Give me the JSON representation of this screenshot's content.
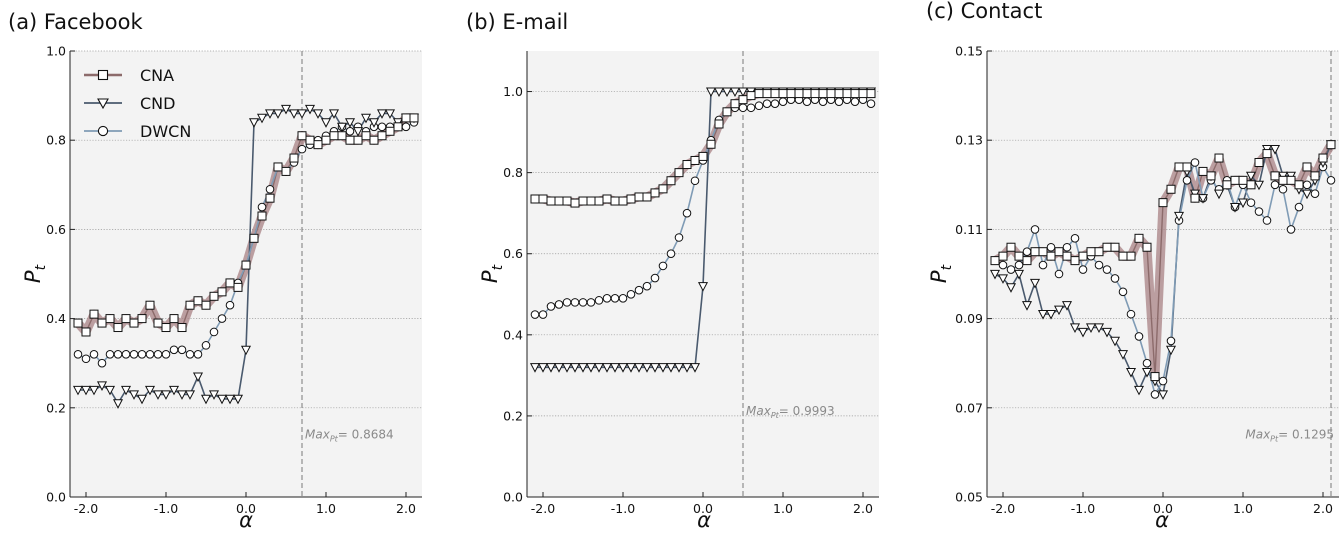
{
  "colors": {
    "CNA_line": "#8c6b6b",
    "CNA_band": "#a88284",
    "CND_line": "#4a5a6e",
    "DWCN_line": "#7f9bb5",
    "panel_bg": "#f3f3f3",
    "grid": "#9a9a9a",
    "marker_edge": "#111111",
    "marker_fill": "#ffffff",
    "max_line": "#7a7a7a",
    "max_text": "#8a8a8a"
  },
  "legend": {
    "placement": "top-left of panel (a)",
    "entries": [
      {
        "label": "CNA",
        "marker": "square"
      },
      {
        "label": "CND",
        "marker": "triangle-down"
      },
      {
        "label": "DWCN",
        "marker": "circle"
      }
    ]
  },
  "chart_data": [
    {
      "type": "line",
      "title": "(a) Facebook",
      "xlabel": "α",
      "ylabel": "P_t",
      "xlim": [
        -2.2,
        2.2
      ],
      "ylim": [
        0.0,
        1.0
      ],
      "xticks": [
        -2.0,
        -1.0,
        0.0,
        1.0,
        2.0
      ],
      "xtick_labels": [
        "-2.0",
        "-1.0",
        "0.0",
        "1.0",
        "2.0"
      ],
      "yticks": [
        0.0,
        0.2,
        0.4,
        0.6,
        0.8,
        1.0
      ],
      "ytick_labels": [
        "0.0",
        "0.2",
        "0.4",
        "0.6",
        "0.8",
        "1.0"
      ],
      "grid": "horizontal dotted",
      "max_alpha": 0.7,
      "max_label": "Max",
      "max_subscript": "Pt",
      "max_value_text": "= 0.8684",
      "x": [
        -2.1,
        -2.0,
        -1.9,
        -1.8,
        -1.7,
        -1.6,
        -1.5,
        -1.4,
        -1.3,
        -1.2,
        -1.1,
        -1.0,
        -0.9,
        -0.8,
        -0.7,
        -0.6,
        -0.5,
        -0.4,
        -0.3,
        -0.2,
        -0.1,
        0.0,
        0.1,
        0.2,
        0.3,
        0.4,
        0.5,
        0.6,
        0.7,
        0.8,
        0.9,
        1.0,
        1.1,
        1.2,
        1.3,
        1.4,
        1.5,
        1.6,
        1.7,
        1.8,
        1.9,
        2.0,
        2.1
      ],
      "series": [
        {
          "name": "CNA",
          "marker": "square",
          "band": true,
          "values": [
            0.39,
            0.37,
            0.41,
            0.39,
            0.4,
            0.38,
            0.4,
            0.39,
            0.4,
            0.43,
            0.39,
            0.38,
            0.4,
            0.38,
            0.43,
            0.44,
            0.43,
            0.45,
            0.46,
            0.48,
            0.47,
            0.52,
            0.58,
            0.63,
            0.67,
            0.74,
            0.73,
            0.76,
            0.81,
            0.8,
            0.79,
            0.8,
            0.81,
            0.81,
            0.8,
            0.8,
            0.81,
            0.8,
            0.81,
            0.82,
            0.83,
            0.85,
            0.85
          ]
        },
        {
          "name": "CND",
          "marker": "triangle-down",
          "values": [
            0.24,
            0.24,
            0.24,
            0.25,
            0.24,
            0.21,
            0.24,
            0.23,
            0.22,
            0.24,
            0.23,
            0.23,
            0.24,
            0.23,
            0.23,
            0.27,
            0.22,
            0.23,
            0.22,
            0.22,
            0.22,
            0.33,
            0.84,
            0.85,
            0.86,
            0.86,
            0.87,
            0.86,
            0.86,
            0.87,
            0.86,
            0.84,
            0.86,
            0.83,
            0.84,
            0.82,
            0.85,
            0.84,
            0.86,
            0.86,
            0.84,
            0.85,
            0.85
          ]
        },
        {
          "name": "DWCN",
          "marker": "circle",
          "values": [
            0.32,
            0.31,
            0.32,
            0.3,
            0.32,
            0.32,
            0.32,
            0.32,
            0.32,
            0.32,
            0.32,
            0.32,
            0.33,
            0.33,
            0.32,
            0.32,
            0.34,
            0.37,
            0.4,
            0.43,
            0.48,
            0.52,
            0.58,
            0.65,
            0.69,
            0.74,
            0.73,
            0.75,
            0.78,
            0.79,
            0.8,
            0.81,
            0.82,
            0.83,
            0.82,
            0.83,
            0.82,
            0.83,
            0.83,
            0.83,
            0.83,
            0.83,
            0.84
          ]
        }
      ]
    },
    {
      "type": "line",
      "title": "(b) E-mail",
      "xlabel": "α",
      "ylabel": "P_t",
      "xlim": [
        -2.2,
        2.2
      ],
      "ylim": [
        0.0,
        1.1
      ],
      "xticks": [
        -2.0,
        -1.0,
        0.0,
        1.0,
        2.0
      ],
      "xtick_labels": [
        "-2.0",
        "-1.0",
        "0.0",
        "1.0",
        "2.0"
      ],
      "yticks": [
        0.0,
        0.2,
        0.4,
        0.6,
        0.8,
        1.0
      ],
      "ytick_labels": [
        "0.0",
        "0.2",
        "0.4",
        "0.6",
        "0.8",
        "1.0"
      ],
      "grid": "horizontal dotted",
      "max_alpha": 0.5,
      "max_label": "Max",
      "max_subscript": "Pt",
      "max_value_text": "= 0.9993",
      "x": [
        -2.1,
        -2.0,
        -1.9,
        -1.8,
        -1.7,
        -1.6,
        -1.5,
        -1.4,
        -1.3,
        -1.2,
        -1.1,
        -1.0,
        -0.9,
        -0.8,
        -0.7,
        -0.6,
        -0.5,
        -0.4,
        -0.3,
        -0.2,
        -0.1,
        0.0,
        0.1,
        0.2,
        0.3,
        0.4,
        0.5,
        0.6,
        0.7,
        0.8,
        0.9,
        1.0,
        1.1,
        1.2,
        1.3,
        1.4,
        1.5,
        1.6,
        1.7,
        1.8,
        1.9,
        2.0,
        2.1
      ],
      "series": [
        {
          "name": "CNA",
          "marker": "square",
          "band": true,
          "values": [
            0.735,
            0.735,
            0.73,
            0.73,
            0.73,
            0.725,
            0.73,
            0.73,
            0.73,
            0.735,
            0.73,
            0.73,
            0.735,
            0.74,
            0.74,
            0.75,
            0.76,
            0.78,
            0.8,
            0.82,
            0.83,
            0.84,
            0.87,
            0.92,
            0.95,
            0.97,
            0.98,
            0.99,
            0.995,
            0.995,
            0.995,
            0.995,
            0.995,
            0.995,
            0.995,
            0.995,
            0.995,
            0.995,
            0.995,
            0.995,
            0.995,
            0.995,
            0.995
          ]
        },
        {
          "name": "CND",
          "marker": "triangle-down",
          "values": [
            0.32,
            0.32,
            0.32,
            0.32,
            0.32,
            0.32,
            0.32,
            0.32,
            0.32,
            0.32,
            0.32,
            0.32,
            0.32,
            0.32,
            0.32,
            0.32,
            0.32,
            0.32,
            0.32,
            0.32,
            0.32,
            0.52,
            1.0,
            1.0,
            1.0,
            1.0,
            1.0,
            1.0,
            1.0,
            1.0,
            1.0,
            1.0,
            1.0,
            1.0,
            1.0,
            1.0,
            1.0,
            1.0,
            1.0,
            1.0,
            1.0,
            1.0,
            1.0
          ]
        },
        {
          "name": "DWCN",
          "marker": "circle",
          "values": [
            0.45,
            0.45,
            0.47,
            0.475,
            0.48,
            0.48,
            0.48,
            0.48,
            0.485,
            0.49,
            0.49,
            0.49,
            0.5,
            0.51,
            0.52,
            0.54,
            0.57,
            0.6,
            0.64,
            0.7,
            0.78,
            0.83,
            0.88,
            0.93,
            0.95,
            0.96,
            0.96,
            0.96,
            0.965,
            0.97,
            0.97,
            0.975,
            0.98,
            0.98,
            0.975,
            0.98,
            0.975,
            0.98,
            0.975,
            0.98,
            0.975,
            0.98,
            0.97
          ]
        }
      ]
    },
    {
      "type": "line",
      "title": "(c) Contact",
      "xlabel": "α",
      "ylabel": "P_t",
      "xlim": [
        -2.2,
        2.2
      ],
      "ylim": [
        0.05,
        0.15
      ],
      "xticks": [
        -2.0,
        -1.0,
        0.0,
        1.0,
        2.0
      ],
      "xtick_labels": [
        "-2.0",
        "-1.0",
        "0.0",
        "1.0",
        "2.0"
      ],
      "yticks": [
        0.05,
        0.07,
        0.09,
        0.11,
        0.13,
        0.15
      ],
      "ytick_labels": [
        "0.05",
        "0.07",
        "0.09",
        "0.11",
        "0.13",
        "0.15"
      ],
      "grid": "horizontal dotted",
      "max_alpha": 2.1,
      "max_label": "Max",
      "max_subscript": "Pt",
      "max_value_text": "= 0.1295",
      "x": [
        -2.1,
        -2.0,
        -1.9,
        -1.8,
        -1.7,
        -1.6,
        -1.5,
        -1.4,
        -1.3,
        -1.2,
        -1.1,
        -1.0,
        -0.9,
        -0.8,
        -0.7,
        -0.6,
        -0.5,
        -0.4,
        -0.3,
        -0.2,
        -0.1,
        0.0,
        0.1,
        0.2,
        0.3,
        0.4,
        0.5,
        0.6,
        0.7,
        0.8,
        0.9,
        1.0,
        1.1,
        1.2,
        1.3,
        1.4,
        1.5,
        1.6,
        1.7,
        1.8,
        1.9,
        2.0,
        2.1
      ],
      "series": [
        {
          "name": "CNA",
          "marker": "square",
          "band": true,
          "values": [
            0.103,
            0.104,
            0.106,
            0.104,
            0.103,
            0.105,
            0.105,
            0.104,
            0.105,
            0.104,
            0.103,
            0.104,
            0.105,
            0.105,
            0.106,
            0.106,
            0.104,
            0.104,
            0.108,
            0.106,
            0.077,
            0.116,
            0.119,
            0.124,
            0.124,
            0.117,
            0.123,
            0.122,
            0.126,
            0.12,
            0.121,
            0.121,
            0.12,
            0.125,
            0.127,
            0.122,
            0.121,
            0.121,
            0.12,
            0.124,
            0.122,
            0.126,
            0.129
          ]
        },
        {
          "name": "CND",
          "marker": "triangle-down",
          "values": [
            0.1,
            0.099,
            0.097,
            0.1,
            0.093,
            0.098,
            0.091,
            0.091,
            0.092,
            0.093,
            0.088,
            0.087,
            0.088,
            0.088,
            0.087,
            0.085,
            0.082,
            0.078,
            0.074,
            0.078,
            0.076,
            0.073,
            0.083,
            0.113,
            0.123,
            0.118,
            0.117,
            0.122,
            0.118,
            0.12,
            0.115,
            0.116,
            0.122,
            0.12,
            0.128,
            0.128,
            0.122,
            0.122,
            0.119,
            0.118,
            0.121,
            0.125,
            0.129
          ]
        },
        {
          "name": "DWCN",
          "marker": "circle",
          "values": [
            0.103,
            0.102,
            0.101,
            0.102,
            0.105,
            0.11,
            0.102,
            0.106,
            0.1,
            0.106,
            0.108,
            0.101,
            0.104,
            0.102,
            0.101,
            0.099,
            0.096,
            0.091,
            0.086,
            0.08,
            0.073,
            0.076,
            0.085,
            0.112,
            0.121,
            0.125,
            0.117,
            0.121,
            0.119,
            0.121,
            0.115,
            0.12,
            0.116,
            0.114,
            0.112,
            0.12,
            0.119,
            0.11,
            0.115,
            0.12,
            0.118,
            0.124,
            0.121
          ]
        }
      ]
    }
  ]
}
